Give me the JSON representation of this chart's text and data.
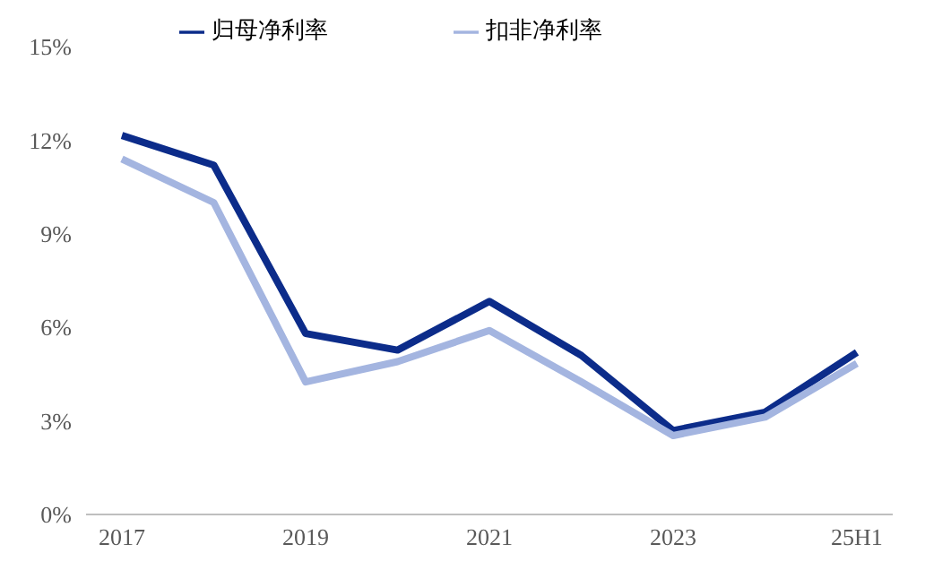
{
  "chart_data": {
    "type": "line",
    "categories": [
      "2017",
      null,
      "2019",
      null,
      "2021",
      null,
      "2023",
      null,
      "25H1"
    ],
    "series": [
      {
        "name": "归母净利率",
        "color": "#0c2c8a",
        "values": [
          12.15,
          11.2,
          5.8,
          5.27,
          6.83,
          5.1,
          2.69,
          3.28,
          5.2
        ]
      },
      {
        "name": "扣非净利率",
        "color": "#a4b5e0",
        "values": [
          11.4,
          10.0,
          4.25,
          4.9,
          5.9,
          4.25,
          2.53,
          3.12,
          4.84
        ]
      }
    ],
    "ylim": [
      0,
      15
    ],
    "yticks": [
      {
        "value": 0,
        "label": "0%"
      },
      {
        "value": 3,
        "label": "3%"
      },
      {
        "value": 6,
        "label": "6%"
      },
      {
        "value": 9,
        "label": "9%"
      },
      {
        "value": 12,
        "label": "12%"
      },
      {
        "value": 15,
        "label": "15%"
      }
    ],
    "grid": false,
    "legend": "top",
    "marker": "none",
    "line_style": "solid"
  }
}
